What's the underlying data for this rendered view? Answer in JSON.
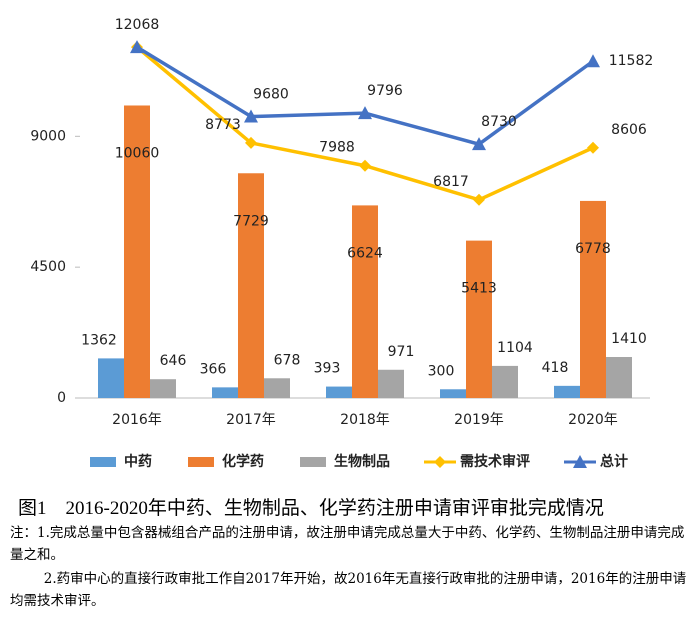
{
  "chart_data": {
    "type": "bar",
    "categories": [
      "2016年",
      "2017年",
      "2018年",
      "2019年",
      "2020年"
    ],
    "series": [
      {
        "name": "中药",
        "type": "bar",
        "color": "#5b9bd5",
        "values": [
          1362,
          366,
          393,
          300,
          418
        ]
      },
      {
        "name": "化学药",
        "type": "bar",
        "color": "#ed7d31",
        "values": [
          10060,
          7729,
          6624,
          5413,
          6778
        ]
      },
      {
        "name": "生物制品",
        "type": "bar",
        "color": "#a5a5a5",
        "values": [
          646,
          678,
          971,
          1104,
          1410
        ]
      },
      {
        "name": "需技术审评",
        "type": "line",
        "marker": "diamond",
        "color": "#ffc000",
        "values": [
          12068,
          8773,
          7988,
          6817,
          8606
        ],
        "value_labels": [
          null,
          "8773",
          "7988",
          "6817",
          "8606"
        ]
      },
      {
        "name": "总计",
        "type": "line",
        "marker": "triangle",
        "color": "#4472c4",
        "values": [
          12068,
          9680,
          9796,
          8730,
          11582
        ]
      }
    ],
    "ylim": [
      0,
      13000
    ],
    "yticks": [
      0,
      4500,
      9000
    ],
    "grid": false
  },
  "caption": "图1　2016-2020年中药、生物制品、化学药注册申请审评审批完成情况",
  "notes": [
    "注：1.完成总量中包含器械组合产品的注册申请，故注册申请完成总量大于中药、化学药、生物制品注册申请完成量之和。",
    "2.药审中心的直接行政审批工作自2017年开始，故2016年无直接行政审批的注册申请，2016年的注册申请均需技术审评。"
  ]
}
